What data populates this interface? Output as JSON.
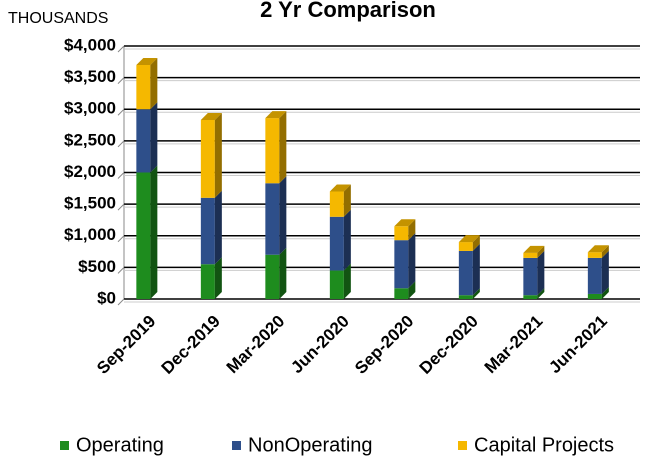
{
  "chart_data": {
    "type": "bar3d_stacked",
    "title": "2 Yr Comparison",
    "y_label": "THOUSANDS",
    "categories": [
      "Sep-2019",
      "Dec-2019",
      "Mar-2020",
      "Jun-2020",
      "Sep-2020",
      "Dec-2020",
      "Mar-2021",
      "Jun-2021"
    ],
    "series": [
      {
        "name": "Operating",
        "color": "#1e8c1e",
        "values": [
          2000,
          550,
          700,
          450,
          170,
          60,
          60,
          80
        ]
      },
      {
        "name": "NonOperating",
        "color": "#2e4f8a",
        "values": [
          1000,
          1050,
          1130,
          850,
          760,
          700,
          590,
          570
        ]
      },
      {
        "name": "Capital Projects",
        "color": "#f5b800",
        "values": [
          700,
          1230,
          1030,
          400,
          220,
          140,
          80,
          90
        ]
      }
    ],
    "ylim": [
      0,
      4000
    ],
    "yticks": [
      {
        "value": 0,
        "label": "$0"
      },
      {
        "value": 500,
        "label": "$500"
      },
      {
        "value": 1000,
        "label": "$1,000"
      },
      {
        "value": 1500,
        "label": "$1,500"
      },
      {
        "value": 2000,
        "label": "$2,000"
      },
      {
        "value": 2500,
        "label": "$2,500"
      },
      {
        "value": 3000,
        "label": "$3,000"
      },
      {
        "value": 3500,
        "label": "$3,500"
      },
      {
        "value": 4000,
        "label": "$4,000"
      }
    ],
    "grid": true,
    "legend": "bottom"
  }
}
